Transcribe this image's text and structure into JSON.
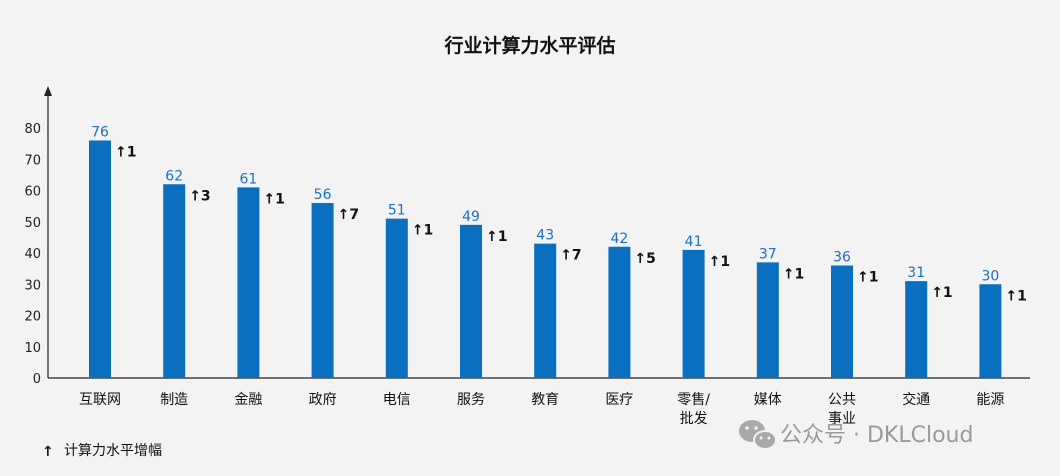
{
  "chart_data": {
    "type": "bar",
    "title": "行业计算力水平评估",
    "categories": [
      [
        "互联网"
      ],
      [
        "制造"
      ],
      [
        "金融"
      ],
      [
        "政府"
      ],
      [
        "电信"
      ],
      [
        "服务"
      ],
      [
        "教育"
      ],
      [
        "医疗"
      ],
      [
        "零售/",
        "批发"
      ],
      [
        "媒体"
      ],
      [
        "公共",
        "事业"
      ],
      [
        "交通"
      ],
      [
        "能源"
      ]
    ],
    "values": [
      76,
      62,
      61,
      56,
      51,
      49,
      43,
      42,
      41,
      37,
      36,
      31,
      30
    ],
    "increases": [
      1,
      3,
      1,
      7,
      1,
      1,
      7,
      5,
      1,
      1,
      1,
      1,
      1
    ],
    "increase_arrow": "↑",
    "ylim": [
      0,
      80
    ],
    "yticks": [
      0,
      10,
      20,
      30,
      40,
      50,
      60,
      70,
      80
    ],
    "grid": false,
    "legend": {
      "position": "bottom-left",
      "label": "计算力水平增幅",
      "symbol": "↑"
    },
    "colors": {
      "bar": "#0a6fbf",
      "value_label": "#1d6fc0",
      "axis": "#222222"
    }
  },
  "watermark": {
    "text": "公众号 · DKLCloud",
    "icon": "wechat-icon"
  }
}
